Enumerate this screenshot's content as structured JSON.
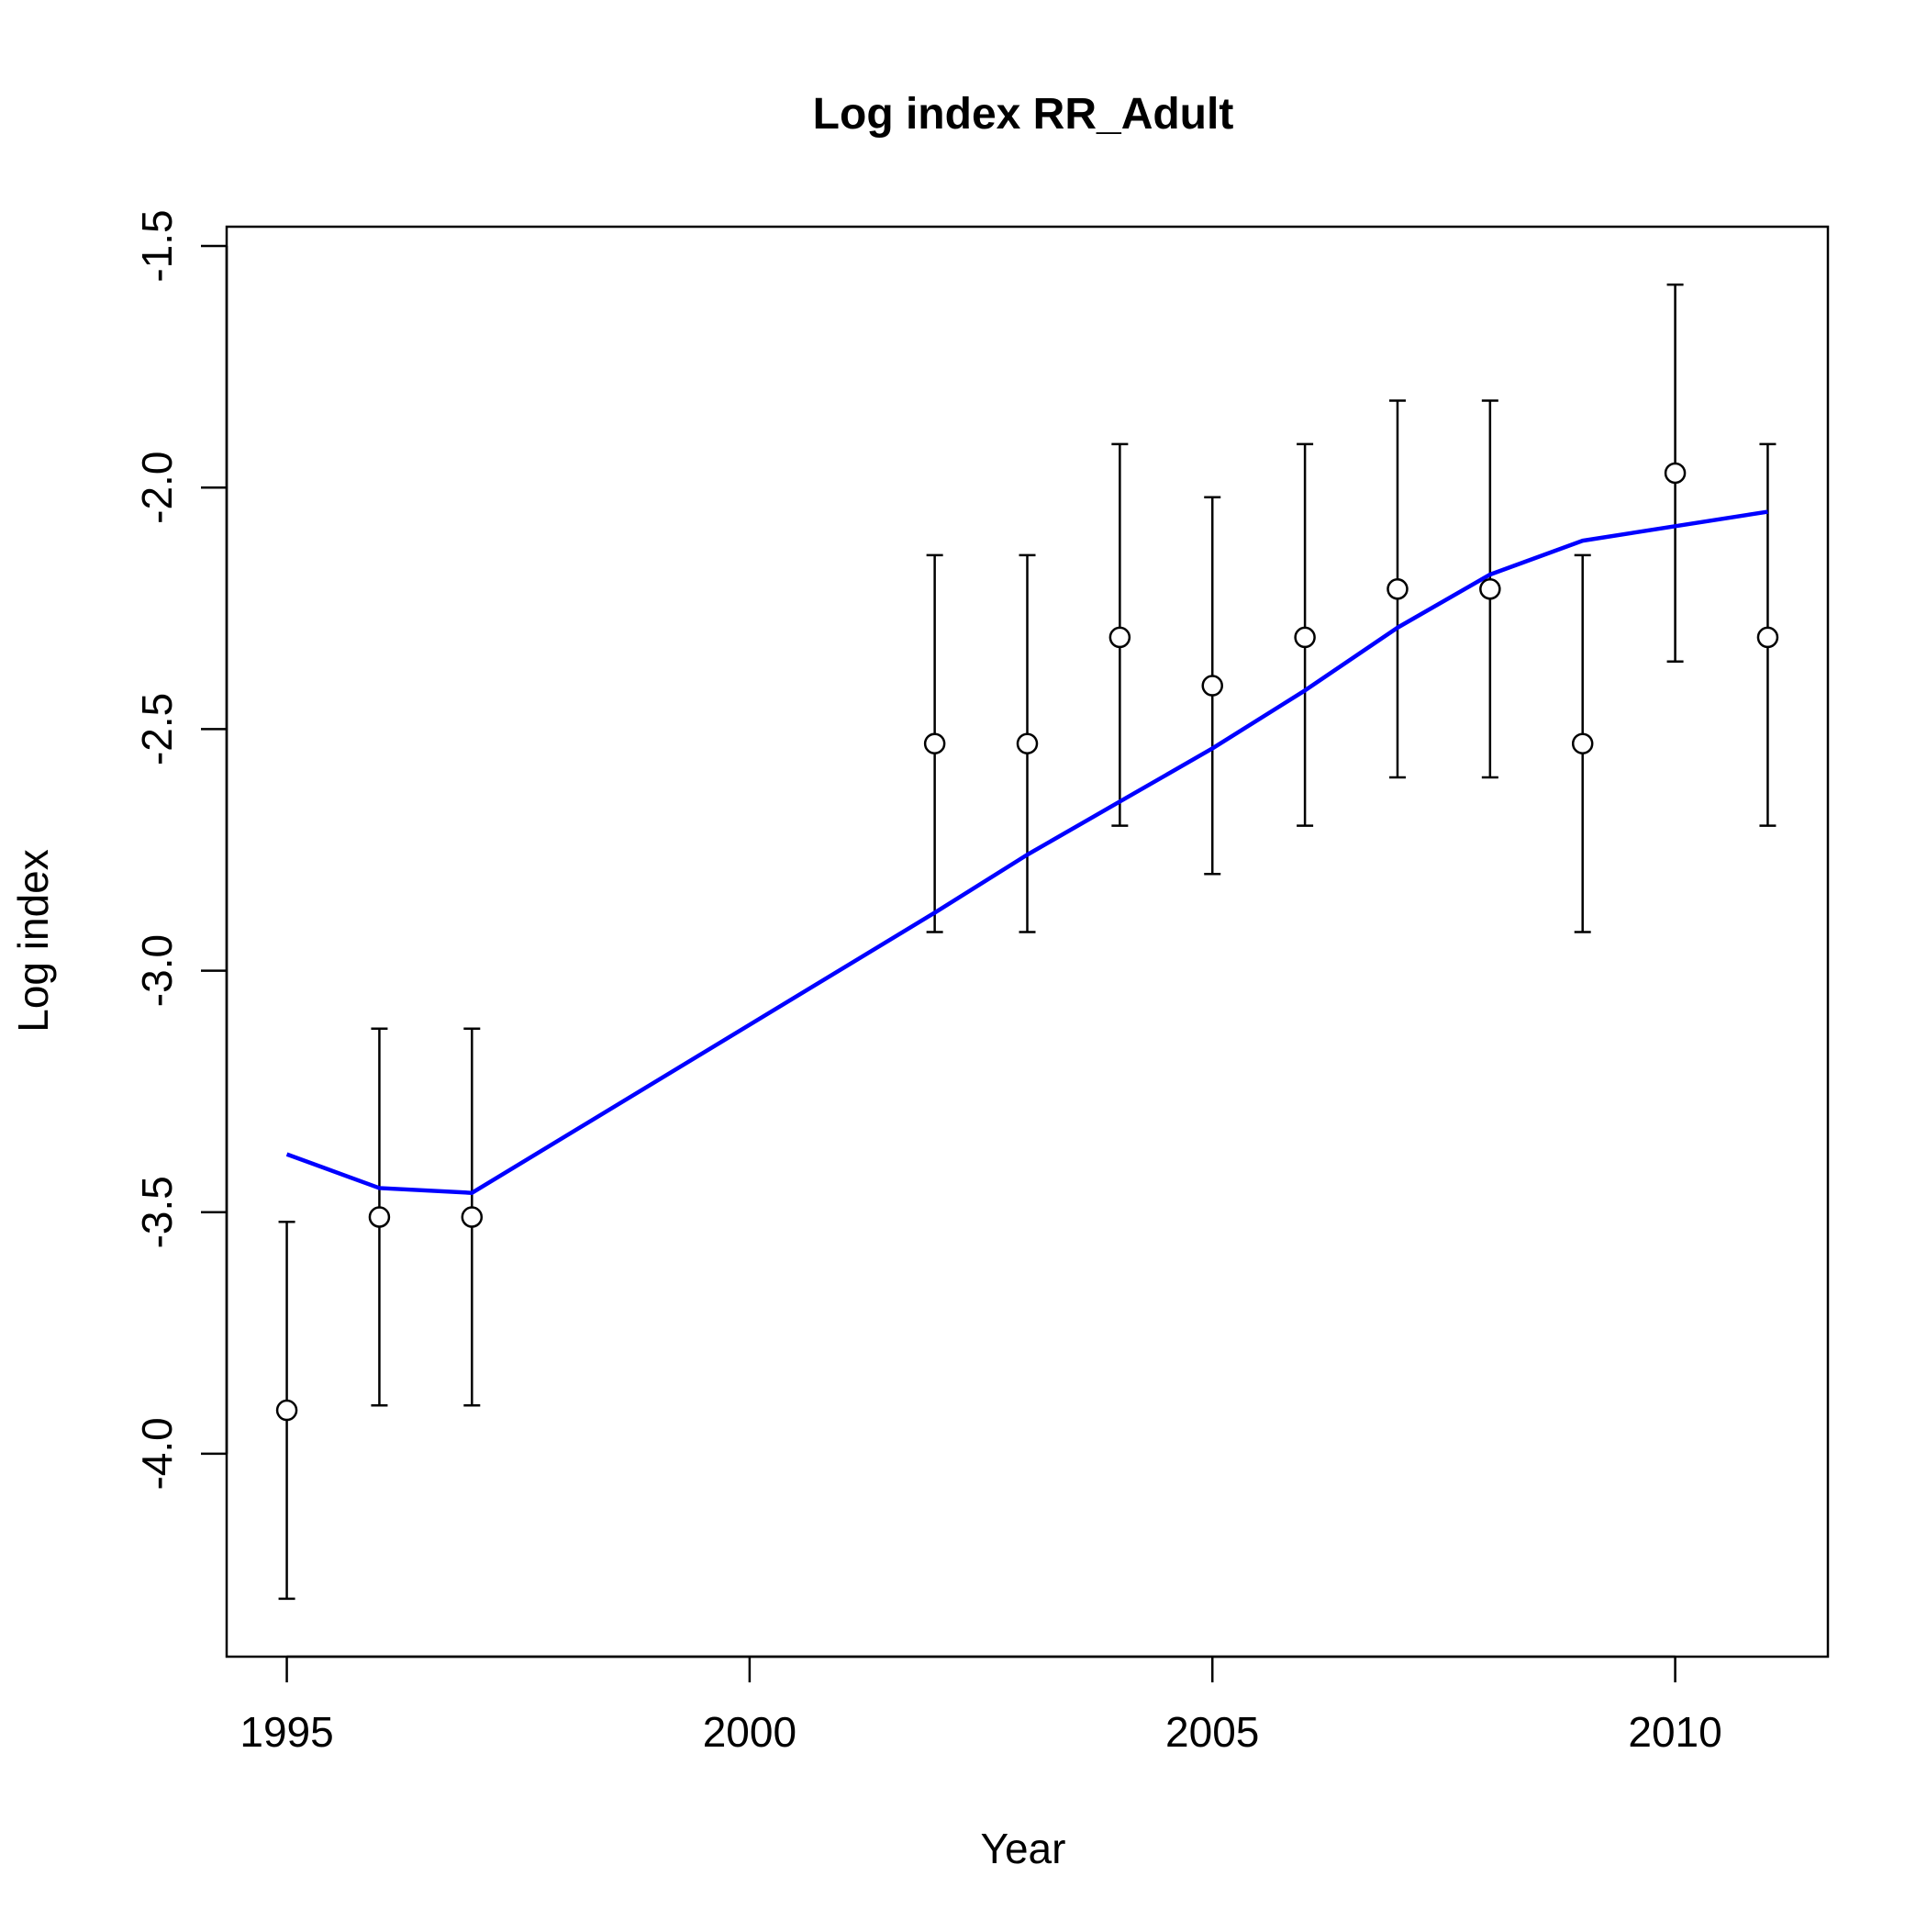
{
  "chart_data": {
    "type": "line",
    "title": "Log index RR_Adult",
    "xlabel": "Year",
    "ylabel": "Log index",
    "xlim": [
      1994.35,
      2011.65
    ],
    "ylim": [
      -4.42,
      -1.46
    ],
    "x_ticks": [
      1995,
      2000,
      2005,
      2010
    ],
    "x_tick_labels": [
      "1995",
      "2000",
      "2005",
      "2010"
    ],
    "y_ticks": [
      -4.0,
      -3.5,
      -3.0,
      -2.5,
      -2.0,
      -1.5
    ],
    "y_tick_labels": [
      "-4.0",
      "-3.5",
      "-3.0",
      "-2.5",
      "-2.0",
      "-1.5"
    ],
    "grid": false,
    "series": [
      {
        "kind": "observed",
        "marker": "open-circle",
        "color": "#000000",
        "points": [
          {
            "x": 1995,
            "y": -3.91,
            "lo": -4.3,
            "hi": -3.52
          },
          {
            "x": 1996,
            "y": -3.51,
            "lo": -3.9,
            "hi": -3.12
          },
          {
            "x": 1997,
            "y": -3.51,
            "lo": -3.9,
            "hi": -3.12
          },
          {
            "x": 2002,
            "y": -2.53,
            "lo": -2.92,
            "hi": -2.14
          },
          {
            "x": 2003,
            "y": -2.53,
            "lo": -2.92,
            "hi": -2.14
          },
          {
            "x": 2004,
            "y": -2.31,
            "lo": -2.7,
            "hi": -1.91
          },
          {
            "x": 2005,
            "y": -2.41,
            "lo": -2.8,
            "hi": -2.02
          },
          {
            "x": 2006,
            "y": -2.31,
            "lo": -2.7,
            "hi": -1.91
          },
          {
            "x": 2007,
            "y": -2.21,
            "lo": -2.6,
            "hi": -1.82
          },
          {
            "x": 2008,
            "y": -2.21,
            "lo": -2.6,
            "hi": -1.82
          },
          {
            "x": 2009,
            "y": -2.53,
            "lo": -2.92,
            "hi": -2.14
          },
          {
            "x": 2010,
            "y": -1.97,
            "lo": -2.36,
            "hi": -1.58
          },
          {
            "x": 2011,
            "y": -2.31,
            "lo": -2.7,
            "hi": -1.91
          }
        ]
      },
      {
        "kind": "fitted",
        "color": "#0000FF",
        "x": [
          1995,
          1996,
          1997,
          2002,
          2003,
          2004,
          2005,
          2006,
          2007,
          2008,
          2009,
          2010,
          2011
        ],
        "y": [
          -3.38,
          -3.45,
          -3.46,
          -2.88,
          -2.76,
          -2.65,
          -2.54,
          -2.42,
          -2.29,
          -2.18,
          -2.11,
          -2.08,
          -2.05
        ]
      }
    ]
  }
}
